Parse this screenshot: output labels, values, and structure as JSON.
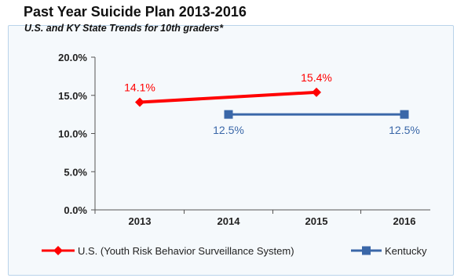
{
  "chart_data": {
    "type": "line",
    "title": "Past Year Suicide Plan 2013-2016",
    "subtitle": "U.S. and KY State Trends for 10th graders*",
    "categories": [
      "2013",
      "2014",
      "2015",
      "2016"
    ],
    "ylim": [
      0,
      20
    ],
    "y_ticks": [
      0,
      5,
      10,
      15,
      20
    ],
    "y_tick_labels": [
      "0.0%",
      "5.0%",
      "10.0%",
      "15.0%",
      "20.0%"
    ],
    "grid": false,
    "legend_position": "bottom",
    "series": [
      {
        "name": "U.S. (Youth Risk Behavior Surveillance System)",
        "color": "#ff0000",
        "marker": "diamond",
        "points": [
          {
            "x": "2013",
            "y": 14.1,
            "label": "14.1%"
          },
          {
            "x": "2015",
            "y": 15.4,
            "label": "15.4%"
          }
        ]
      },
      {
        "name": "Kentucky",
        "color": "#3a67a8",
        "marker": "square",
        "points": [
          {
            "x": "2014",
            "y": 12.5,
            "label": "12.5%"
          },
          {
            "x": "2016",
            "y": 12.5,
            "label": "12.5%"
          }
        ]
      }
    ]
  }
}
